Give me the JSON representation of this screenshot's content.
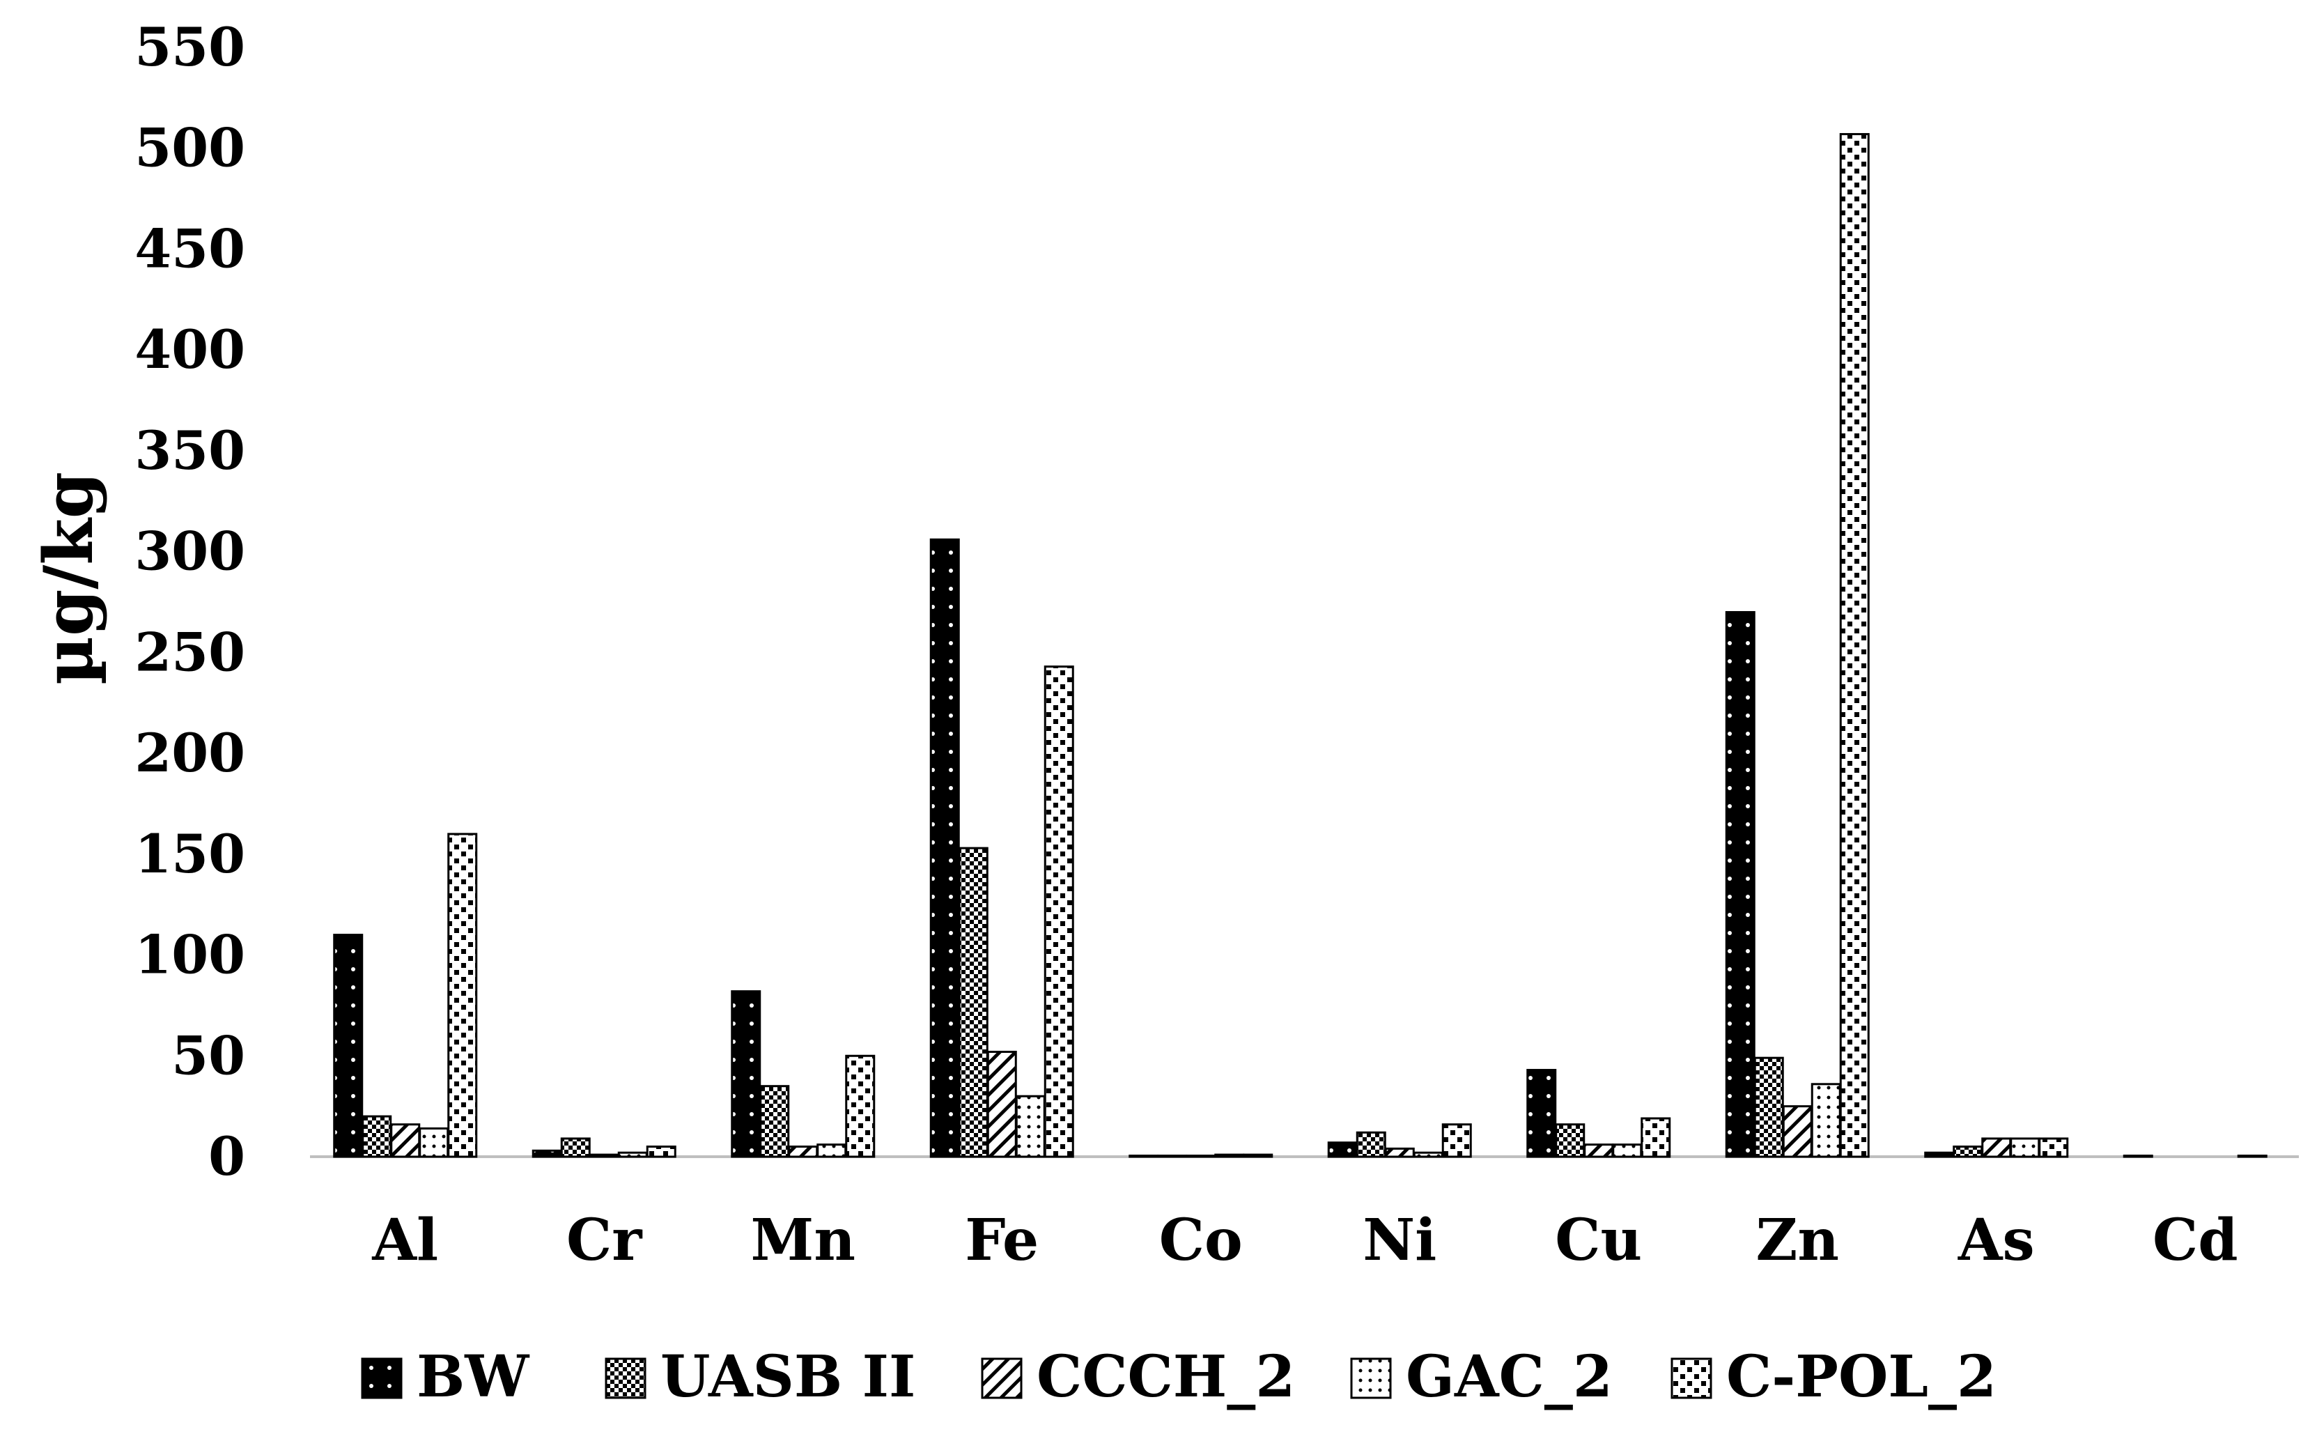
{
  "chart_data": {
    "type": "bar",
    "title": "",
    "xlabel": "",
    "ylabel": "µg/kg",
    "ylim": [
      0,
      550
    ],
    "yticks": [
      0,
      50,
      100,
      150,
      200,
      250,
      300,
      350,
      400,
      450,
      500,
      550
    ],
    "grid": false,
    "legend_position": "bottom",
    "categories": [
      "Al",
      "Cr",
      "Mn",
      "Fe",
      "Co",
      "Ni",
      "Cu",
      "Zn",
      "As",
      "Cd"
    ],
    "series": [
      {
        "name": "BW",
        "pattern": "solid-dots",
        "values": [
          110,
          3,
          82,
          306,
          0.5,
          7,
          43,
          270,
          2,
          0.5
        ]
      },
      {
        "name": "UASB II",
        "pattern": "checker",
        "values": [
          20,
          9,
          35,
          153,
          0.5,
          12,
          16,
          49,
          5,
          0
        ]
      },
      {
        "name": "CCCH_2",
        "pattern": "diagonal",
        "values": [
          16,
          1,
          5,
          52,
          0.5,
          4,
          6,
          25,
          9,
          0
        ]
      },
      {
        "name": "GAC_2",
        "pattern": "light-dots",
        "values": [
          14,
          2,
          6,
          30,
          1,
          2,
          6,
          36,
          9,
          0
        ]
      },
      {
        "name": "C-POL_2",
        "pattern": "square-dots",
        "values": [
          160,
          5,
          50,
          243,
          1,
          16,
          19,
          507,
          9,
          0.5
        ]
      }
    ]
  }
}
